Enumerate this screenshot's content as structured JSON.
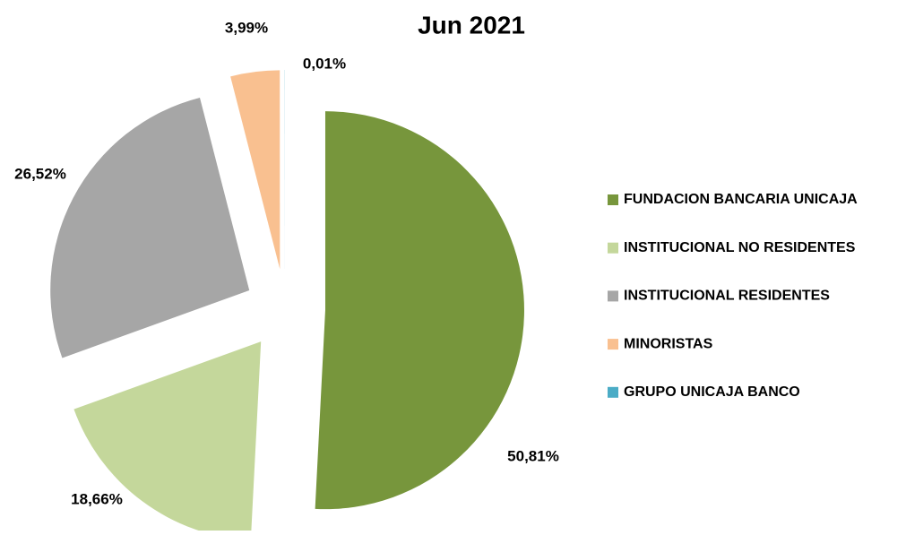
{
  "chart_data": {
    "type": "pie",
    "title": "Jun 2021",
    "categories": [
      "FUNDACION BANCARIA UNICAJA",
      "INSTITUCIONAL NO RESIDENTES",
      "INSTITUCIONAL RESIDENTES",
      "MINORISTAS",
      "GRUPO UNICAJA BANCO"
    ],
    "values": [
      50.81,
      18.66,
      26.52,
      3.99,
      0.01
    ],
    "value_labels": [
      "50,81%",
      "18,66%",
      "26,52%",
      "3,99%",
      "0,01%"
    ],
    "colors": [
      "#77963c",
      "#c4d79b",
      "#a6a6a6",
      "#f9c090",
      "#4bacc6"
    ],
    "legend": "right"
  }
}
